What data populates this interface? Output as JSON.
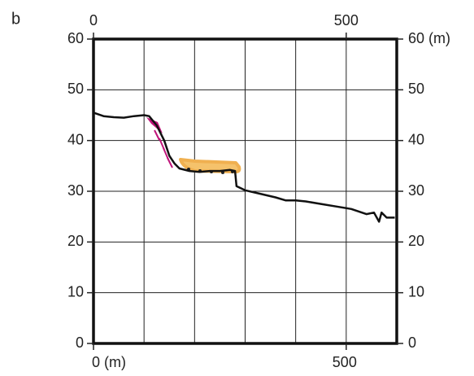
{
  "chart_data": {
    "type": "line",
    "panel_label": "b",
    "x": [
      0,
      20,
      40,
      60,
      80,
      100,
      110,
      125,
      140,
      150,
      160,
      170,
      190,
      210,
      230,
      250,
      270,
      280,
      283,
      300,
      330,
      360,
      380,
      400,
      420,
      450,
      480,
      510,
      540,
      555,
      565,
      570,
      580,
      596
    ],
    "series": [
      {
        "color": "#111111",
        "values": [
          45.5,
          44.8,
          44.6,
          44.5,
          44.8,
          45,
          44.8,
          43,
          40,
          37,
          35.5,
          34.5,
          34,
          33.8,
          34,
          34,
          34.2,
          34,
          31,
          30.2,
          29.5,
          28.8,
          28.2,
          28.2,
          28,
          27.5,
          27,
          26.5,
          25.5,
          25.8,
          24,
          25.8,
          24.8,
          24.8
        ]
      }
    ],
    "xlim": [
      0,
      600
    ],
    "xticks": [
      {
        "value": 0,
        "label": "0 (m)"
      },
      500
    ],
    "xticks_top": [
      0,
      500
    ],
    "xgrid": [
      100,
      200,
      300,
      400,
      500
    ],
    "ylim": [
      0,
      60
    ],
    "yticks": [
      0,
      10,
      20,
      30,
      40,
      50,
      60
    ],
    "y2lim": [
      0,
      60
    ],
    "y2ticks": [
      0,
      10,
      20,
      30,
      40,
      50,
      {
        "value": 60,
        "label": "60 (m)"
      }
    ],
    "grid": true
  }
}
